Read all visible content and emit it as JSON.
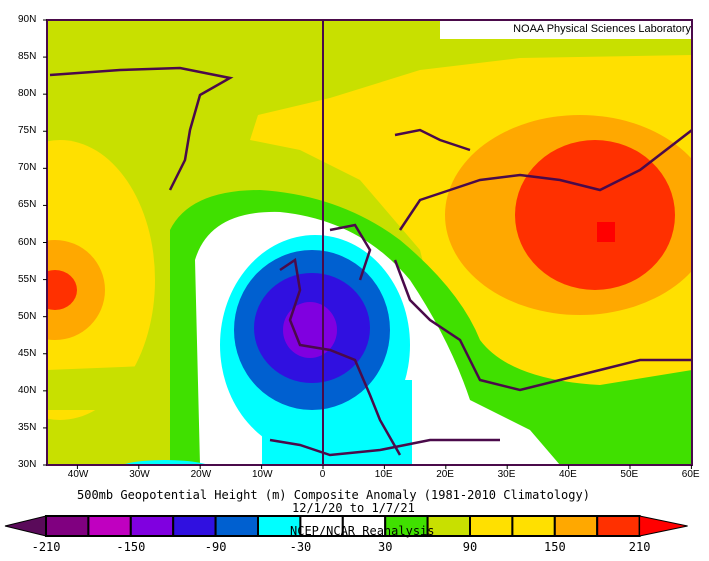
{
  "credit": "NOAA Physical Sciences Laboratory",
  "title": "500mb Geopotential Height (m) Composite Anomaly (1981-2010 Climatology)",
  "date_range": "12/1/20  to 1/7/21",
  "source": "NCEP/NCAR Reanalysis",
  "lat_labels": [
    "30N",
    "35N",
    "40N",
    "45N",
    "50N",
    "55N",
    "60N",
    "65N",
    "70N",
    "75N",
    "80N",
    "85N",
    "90N"
  ],
  "lon_labels": [
    "40W",
    "30W",
    "20W",
    "10W",
    "0",
    "10E",
    "20E",
    "30E",
    "40E",
    "50E",
    "60E"
  ],
  "colorbar": {
    "labels": [
      "-210",
      "-150",
      "-90",
      "-30",
      "30",
      "90",
      "150",
      "210"
    ],
    "colors": [
      "#800080",
      "#c000c0",
      "#8000e0",
      "#3010e0",
      "#0060d0",
      "#00ffff",
      "#ffffff",
      "#ffffff",
      "#40e000",
      "#c8e000",
      "#ffe000",
      "#ffe000",
      "#ffa800",
      "#ff3000"
    ],
    "low_arrow": "#5a0a5a",
    "high_arrow": "#ff0000"
  }
}
